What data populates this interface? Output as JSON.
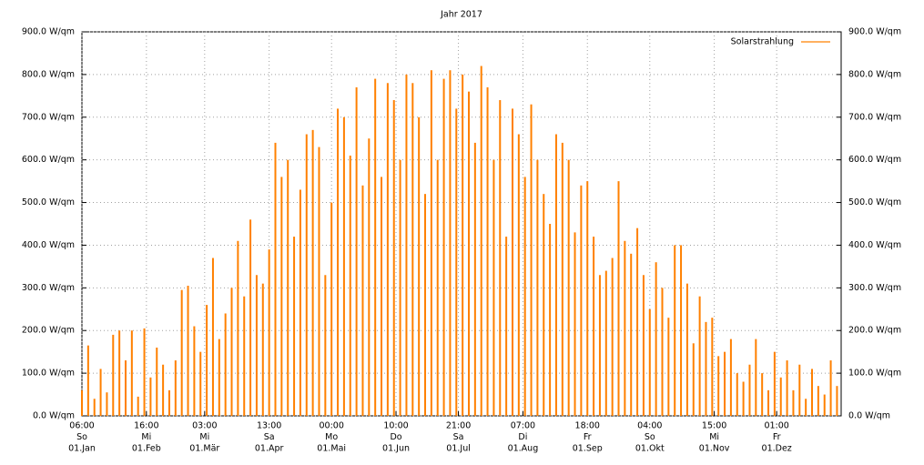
{
  "chart_data": {
    "type": "bar",
    "title": "Jahr 2017",
    "x": [
      0,
      3,
      6,
      9,
      12,
      15,
      18,
      21,
      24,
      27,
      30,
      33,
      36,
      39,
      42,
      45,
      48,
      51,
      54,
      57,
      60,
      63,
      66,
      69,
      72,
      75,
      78,
      81,
      84,
      87,
      90,
      93,
      96,
      99,
      102,
      105,
      108,
      111,
      114,
      117,
      120,
      123,
      126,
      129,
      132,
      135,
      138,
      141,
      144,
      147,
      150,
      153,
      156,
      159,
      162,
      165,
      168,
      171,
      174,
      177,
      180,
      183,
      186,
      189,
      192,
      195,
      198,
      201,
      204,
      207,
      210,
      213,
      216,
      219,
      222,
      225,
      228,
      231,
      234,
      237,
      240,
      243,
      246,
      249,
      252,
      255,
      258,
      261,
      264,
      267,
      270,
      273,
      276,
      279,
      282,
      285,
      288,
      291,
      294,
      297,
      300,
      303,
      306,
      309,
      312,
      315,
      318,
      321,
      324,
      327,
      330,
      333,
      336,
      339,
      342,
      345,
      348,
      351,
      354,
      357,
      360,
      363
    ],
    "series": [
      {
        "name": "Solarstrahlung",
        "color": "#ff8000",
        "values": [
          60,
          165,
          40,
          110,
          55,
          190,
          200,
          130,
          200,
          45,
          205,
          90,
          160,
          120,
          60,
          130,
          295,
          305,
          210,
          150,
          260,
          370,
          180,
          240,
          300,
          410,
          280,
          460,
          330,
          310,
          390,
          640,
          560,
          600,
          420,
          530,
          660,
          670,
          630,
          330,
          500,
          720,
          700,
          610,
          770,
          540,
          650,
          790,
          560,
          780,
          740,
          600,
          800,
          780,
          700,
          520,
          810,
          600,
          790,
          810,
          720,
          800,
          760,
          640,
          820,
          770,
          600,
          740,
          420,
          720,
          660,
          560,
          730,
          600,
          520,
          450,
          660,
          640,
          600,
          430,
          540,
          550,
          420,
          330,
          340,
          370,
          550,
          410,
          380,
          440,
          330,
          250,
          360,
          300,
          230,
          400,
          400,
          310,
          170,
          280,
          220,
          230,
          140,
          150,
          180,
          100,
          80,
          120,
          180,
          100,
          60,
          150,
          90,
          130,
          60,
          120,
          40,
          110,
          70,
          50,
          130,
          70
        ]
      }
    ],
    "xlim": [
      0,
      365
    ],
    "xticks": [
      {
        "value": 0,
        "label": [
          "06:00",
          "So",
          "01.Jan"
        ]
      },
      {
        "value": 31,
        "label": [
          "16:00",
          "Mi",
          "01.Feb"
        ]
      },
      {
        "value": 59,
        "label": [
          "03:00",
          "Mi",
          "01.Mär"
        ]
      },
      {
        "value": 90,
        "label": [
          "13:00",
          "Sa",
          "01.Apr"
        ]
      },
      {
        "value": 120,
        "label": [
          "00:00",
          "Mo",
          "01.Mai"
        ]
      },
      {
        "value": 151,
        "label": [
          "10:00",
          "Do",
          "01.Jun"
        ]
      },
      {
        "value": 181,
        "label": [
          "21:00",
          "Sa",
          "01.Jul"
        ]
      },
      {
        "value": 212,
        "label": [
          "07:00",
          "Di",
          "01.Aug"
        ]
      },
      {
        "value": 243,
        "label": [
          "18:00",
          "Fr",
          "01.Sep"
        ]
      },
      {
        "value": 273,
        "label": [
          "04:00",
          "So",
          "01.Okt"
        ]
      },
      {
        "value": 304,
        "label": [
          "15:00",
          "Mi",
          "01.Nov"
        ]
      },
      {
        "value": 334,
        "label": [
          "01:00",
          "Fr",
          "01.Dez"
        ]
      }
    ],
    "ylim": [
      0,
      900
    ],
    "yticks": [
      {
        "value": 0,
        "label": "0.0 W/qm"
      },
      {
        "value": 100,
        "label": "100.0 W/qm"
      },
      {
        "value": 200,
        "label": "200.0 W/qm"
      },
      {
        "value": 300,
        "label": "300.0 W/qm"
      },
      {
        "value": 400,
        "label": "400.0 W/qm"
      },
      {
        "value": 500,
        "label": "500.0 W/qm"
      },
      {
        "value": 600,
        "label": "600.0 W/qm"
      },
      {
        "value": 700,
        "label": "700.0 W/qm"
      },
      {
        "value": 800,
        "label": "800.0 W/qm"
      },
      {
        "value": 900,
        "label": "900.0 W/qm"
      }
    ],
    "grid": true,
    "legend": "top-right"
  }
}
